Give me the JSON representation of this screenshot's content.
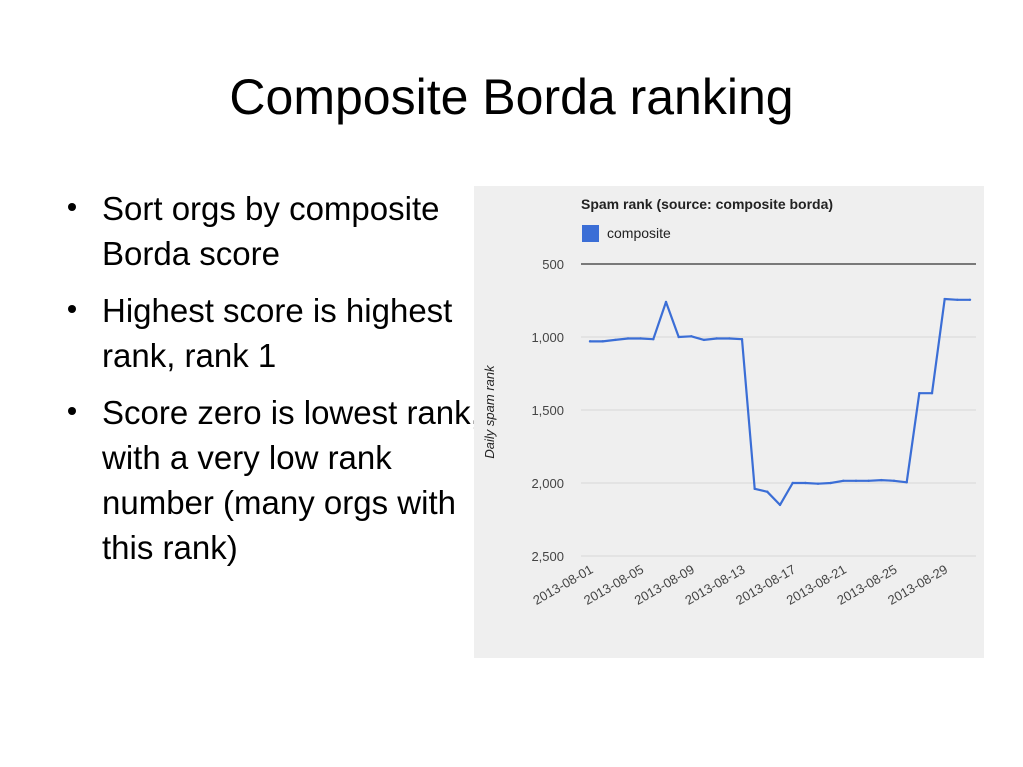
{
  "slide": {
    "title": "Composite Borda ranking",
    "bullets": [
      "Sort orgs by composite Borda score",
      "Highest score is highest rank, rank 1",
      "Score zero is lowest rank, with a very low rank number (many orgs with this rank)"
    ]
  },
  "chart_data": {
    "type": "line",
    "title": "Spam rank (source: composite borda)",
    "xlabel": "",
    "ylabel": "Daily spam rank",
    "legend": [
      "composite"
    ],
    "legend_position": "top-left",
    "y_inverted": true,
    "ylim": [
      500,
      2500
    ],
    "y_ticks": [
      500,
      1000,
      1500,
      2000,
      2500
    ],
    "y_tick_labels": [
      "500",
      "1,000",
      "1,500",
      "2,000",
      "2,500"
    ],
    "x_tick_labels": [
      "2013-08-01",
      "2013-08-05",
      "2013-08-09",
      "2013-08-13",
      "2013-08-17",
      "2013-08-21",
      "2013-08-25",
      "2013-08-29"
    ],
    "grid": true,
    "colors": {
      "composite": "#3b6ed6",
      "grid": "#d7d7d7",
      "baseline": "#333333"
    },
    "x": [
      "2013-08-01",
      "2013-08-02",
      "2013-08-03",
      "2013-08-04",
      "2013-08-05",
      "2013-08-06",
      "2013-08-07",
      "2013-08-08",
      "2013-08-09",
      "2013-08-10",
      "2013-08-11",
      "2013-08-12",
      "2013-08-13",
      "2013-08-14",
      "2013-08-15",
      "2013-08-16",
      "2013-08-17",
      "2013-08-18",
      "2013-08-19",
      "2013-08-20",
      "2013-08-21",
      "2013-08-22",
      "2013-08-23",
      "2013-08-24",
      "2013-08-25",
      "2013-08-26",
      "2013-08-27",
      "2013-08-28",
      "2013-08-29",
      "2013-08-30",
      "2013-08-31"
    ],
    "series": [
      {
        "name": "composite",
        "values": [
          1030,
          1030,
          1020,
          1010,
          1010,
          1015,
          760,
          1000,
          995,
          1020,
          1010,
          1010,
          1015,
          2040,
          2060,
          2150,
          2000,
          2000,
          2005,
          2000,
          1985,
          1985,
          1985,
          1980,
          1985,
          1995,
          1385,
          1385,
          740,
          745,
          745
        ]
      }
    ]
  }
}
